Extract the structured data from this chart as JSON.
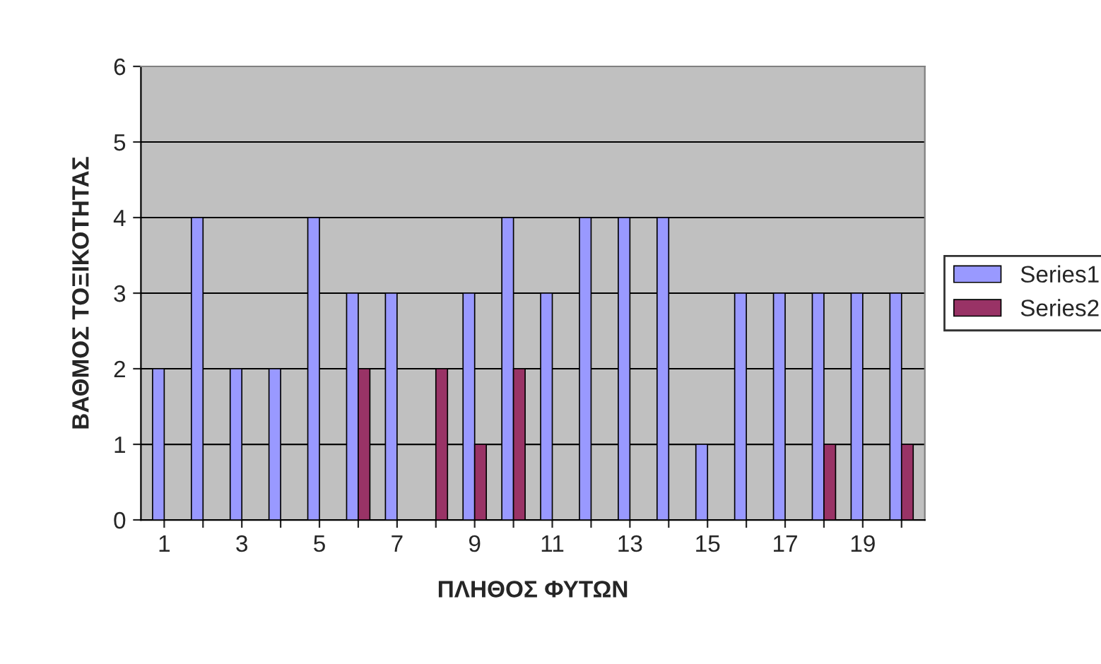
{
  "chart_data": {
    "type": "bar",
    "xlabel": "ΠΛΗΘΟΣ ΦΥΤΩΝ",
    "ylabel": "ΒΑΘΜΟΣ ΤΟΞΙΚΟΤΗΤΑΣ",
    "categories": [
      "1",
      null,
      "3",
      null,
      "5",
      null,
      "7",
      null,
      "9",
      null,
      "11",
      null,
      "13",
      null,
      "15",
      null,
      "17",
      null,
      "19",
      null
    ],
    "series": [
      {
        "name": "Series1",
        "color": "#9999ff",
        "values": [
          2,
          4,
          2,
          2,
          4,
          3,
          3,
          null,
          3,
          4,
          3,
          4,
          4,
          4,
          1,
          3,
          3,
          3,
          3,
          3
        ]
      },
      {
        "name": "Series2",
        "color": "#993366",
        "values": [
          null,
          null,
          null,
          null,
          null,
          2,
          null,
          2,
          1,
          2,
          null,
          null,
          null,
          null,
          null,
          null,
          null,
          1,
          null,
          1
        ]
      }
    ],
    "ylim": [
      0,
      6
    ],
    "yticks": [
      0,
      1,
      2,
      3,
      4,
      5,
      6
    ],
    "grid": "y",
    "legend": "right"
  }
}
